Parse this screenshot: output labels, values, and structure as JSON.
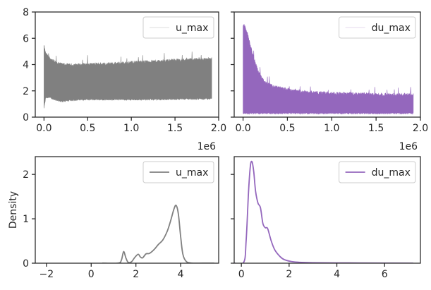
{
  "colors": {
    "u_max": "#808080",
    "du_max": "#9467bd",
    "axis": "#262626"
  },
  "chart_data": [
    {
      "type": "area",
      "panel": "top-left",
      "series": [
        {
          "name": "u_max",
          "color": "#808080"
        }
      ],
      "x_range": [
        0,
        1920000
      ],
      "xlim": [
        -100000,
        2000000
      ],
      "ylim": [
        0,
        8
      ],
      "x_ticks": [
        0,
        500000,
        1000000,
        1500000,
        2000000
      ],
      "x_tick_labels": [
        "0.0",
        "0.5",
        "1.0",
        "1.5",
        "2.0"
      ],
      "x_offset_label": "1e6",
      "y_ticks": [
        0,
        2,
        4,
        6,
        8
      ],
      "y_tick_labels": [
        "0",
        "2",
        "4",
        "6",
        "8"
      ],
      "upper_envelope": {
        "x": [
          0,
          20000,
          60000,
          120000,
          200000,
          300000,
          500000,
          800000,
          1000000,
          1300000,
          1600000,
          1920000
        ],
        "y": [
          5.4,
          4.8,
          4.5,
          4.2,
          4.0,
          3.95,
          4.0,
          4.05,
          4.15,
          4.25,
          4.35,
          4.4
        ]
      },
      "lower_envelope": {
        "x": [
          0,
          20000,
          60000,
          120000,
          200000,
          300000,
          500000,
          800000,
          1000000,
          1300000,
          1600000,
          1920000
        ],
        "y": [
          0.7,
          1.5,
          1.5,
          1.35,
          1.2,
          1.3,
          1.35,
          1.35,
          1.35,
          1.35,
          1.4,
          1.4
        ]
      },
      "legend": {
        "position": "top-right",
        "entries": [
          "u_max"
        ]
      }
    },
    {
      "type": "area",
      "panel": "top-right",
      "series": [
        {
          "name": "du_max",
          "color": "#9467bd"
        }
      ],
      "x_range": [
        0,
        1920000
      ],
      "xlim": [
        -100000,
        2000000
      ],
      "ylim": [
        0,
        8
      ],
      "x_ticks": [
        0,
        500000,
        1000000,
        1500000,
        2000000
      ],
      "x_tick_labels": [
        "0.0",
        "0.5",
        "1.0",
        "1.5",
        "2.0"
      ],
      "x_offset_label": "1e6",
      "y_ticks": [
        0,
        2,
        4,
        6,
        8
      ],
      "upper_envelope": {
        "x": [
          0,
          15000,
          40000,
          80000,
          120000,
          180000,
          250000,
          350000,
          500000,
          700000,
          1000000,
          1300000,
          1600000,
          1920000
        ],
        "y": [
          7.0,
          6.9,
          6.6,
          5.5,
          4.5,
          3.3,
          2.6,
          2.3,
          2.1,
          1.9,
          1.8,
          1.75,
          1.7,
          1.7
        ]
      },
      "lower_envelope": {
        "x": [
          0,
          1920000
        ],
        "y": [
          0.3,
          0.3
        ]
      },
      "legend": {
        "position": "top-right",
        "entries": [
          "du_max"
        ]
      }
    },
    {
      "type": "line",
      "panel": "bottom-left",
      "ylabel": "Density",
      "series": [
        {
          "name": "u_max",
          "color": "#808080",
          "x": [
            0.5,
            1.2,
            1.35,
            1.45,
            1.55,
            1.65,
            1.8,
            1.95,
            2.1,
            2.2,
            2.3,
            2.45,
            2.6,
            2.8,
            3.0,
            3.2,
            3.4,
            3.55,
            3.7,
            3.8,
            3.9,
            4.0,
            4.1,
            4.25,
            4.5,
            5.0,
            5.5
          ],
          "y": [
            0,
            0,
            0.07,
            0.26,
            0.12,
            0.02,
            0.03,
            0.13,
            0.2,
            0.14,
            0.12,
            0.21,
            0.22,
            0.3,
            0.42,
            0.52,
            0.72,
            0.95,
            1.22,
            1.3,
            1.1,
            0.6,
            0.2,
            0.04,
            0.0,
            0,
            0
          ]
        }
      ],
      "xlim": [
        -2.5,
        5.7
      ],
      "ylim": [
        0,
        2.4
      ],
      "x_ticks": [
        -2,
        0,
        2,
        4
      ],
      "x_tick_labels": [
        "−2",
        "0",
        "2",
        "4"
      ],
      "y_ticks": [
        0,
        1,
        2
      ],
      "y_tick_labels": [
        "0",
        "1",
        "2"
      ],
      "legend": {
        "position": "top-right",
        "entries": [
          "u_max"
        ]
      }
    },
    {
      "type": "line",
      "panel": "bottom-right",
      "series": [
        {
          "name": "du_max",
          "color": "#9467bd",
          "x": [
            -0.3,
            0.1,
            0.2,
            0.3,
            0.38,
            0.45,
            0.52,
            0.6,
            0.7,
            0.8,
            0.9,
            1.0,
            1.1,
            1.25,
            1.4,
            1.6,
            1.8,
            2.2,
            3.0,
            4.5,
            6.0,
            7.2
          ],
          "y": [
            0,
            0.02,
            0.5,
            1.6,
            2.2,
            2.28,
            2.05,
            1.6,
            1.35,
            1.25,
            0.9,
            0.8,
            0.78,
            0.5,
            0.3,
            0.16,
            0.08,
            0.03,
            0.01,
            0.005,
            0.002,
            0
          ]
        }
      ],
      "xlim": [
        -0.3,
        7.5
      ],
      "ylim": [
        0,
        2.4
      ],
      "x_ticks": [
        0,
        2,
        4,
        6
      ],
      "x_tick_labels": [
        "0",
        "2",
        "4",
        "6"
      ],
      "y_ticks": [
        0,
        1,
        2
      ],
      "legend": {
        "position": "top-right",
        "entries": [
          "du_max"
        ]
      }
    }
  ]
}
